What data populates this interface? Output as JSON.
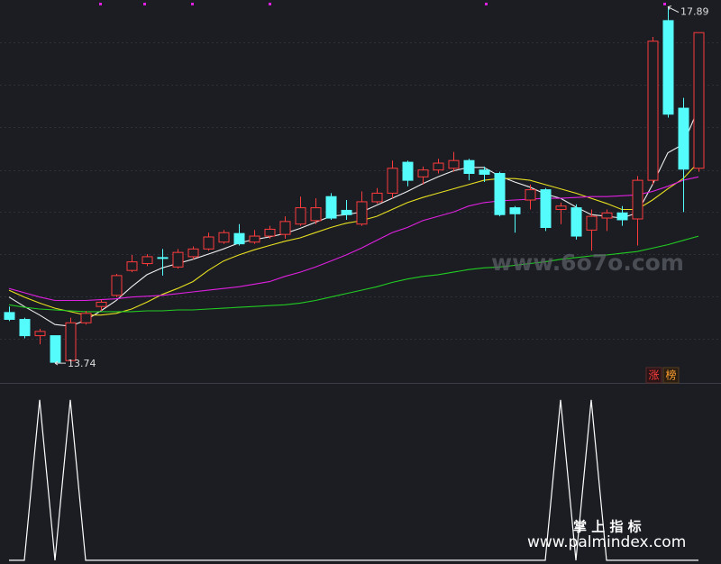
{
  "chart_data": [
    {
      "type": "candlestick",
      "open": [
        14.33,
        14.25,
        14.06,
        14.06,
        13.77,
        14.21,
        14.4,
        14.53,
        14.82,
        14.9,
        14.97,
        14.86,
        14.98,
        15.07,
        15.15,
        15.25,
        15.15,
        15.22,
        15.24,
        15.36,
        15.4,
        15.68,
        15.52,
        15.36,
        15.62,
        15.72,
        16.08,
        15.91,
        15.99,
        16.01,
        16.1,
        15.99,
        15.95,
        15.55,
        15.64,
        15.76,
        15.53,
        15.55,
        15.29,
        15.43,
        15.49,
        15.42,
        15.87,
        17.73,
        16.71,
        16.01
      ],
      "high": [
        14.4,
        14.27,
        14.14,
        14.06,
        14.27,
        14.35,
        14.48,
        14.78,
        15.0,
        15.01,
        15.07,
        15.07,
        15.1,
        15.26,
        15.29,
        15.36,
        15.29,
        15.34,
        15.45,
        15.68,
        15.66,
        15.72,
        15.64,
        15.74,
        15.78,
        16.1,
        16.1,
        16.03,
        16.12,
        16.2,
        16.12,
        16.03,
        15.97,
        15.57,
        15.82,
        15.78,
        15.61,
        15.59,
        15.53,
        15.53,
        15.57,
        15.92,
        17.54,
        17.89,
        16.83,
        17.59
      ],
      "low": [
        14.23,
        14.03,
        13.96,
        13.74,
        13.76,
        14.19,
        14.35,
        14.51,
        14.8,
        14.87,
        14.76,
        14.84,
        14.95,
        15.05,
        15.13,
        15.11,
        15.13,
        15.19,
        15.19,
        15.34,
        15.36,
        15.41,
        15.41,
        15.34,
        15.6,
        15.66,
        15.8,
        15.82,
        15.95,
        15.97,
        15.87,
        15.85,
        15.45,
        15.26,
        15.53,
        15.28,
        15.36,
        15.18,
        15.05,
        15.28,
        15.34,
        15.11,
        15.82,
        16.6,
        15.5,
        15.97
      ],
      "close": [
        14.25,
        14.06,
        14.11,
        13.75,
        14.21,
        14.32,
        14.45,
        14.76,
        14.92,
        14.98,
        14.96,
        15.03,
        15.07,
        15.21,
        15.26,
        15.13,
        15.22,
        15.3,
        15.39,
        15.55,
        15.55,
        15.43,
        15.47,
        15.62,
        15.72,
        16.01,
        15.87,
        15.99,
        16.07,
        16.1,
        15.95,
        15.94,
        15.47,
        15.48,
        15.76,
        15.32,
        15.57,
        15.22,
        15.45,
        15.49,
        15.41,
        15.87,
        17.49,
        16.64,
        16.0,
        17.59
      ],
      "up_color": "#ff3c3c",
      "down_color": "#54fcfc",
      "ylim": [
        13.51,
        17.97
      ],
      "yticks": [
        14.02,
        14.52,
        15.01,
        15.5,
        15.99,
        16.49,
        16.98,
        17.48
      ],
      "grid": true,
      "series": [
        {
          "color": "#eeeeee",
          "values": [
            14.51,
            14.4,
            14.3,
            14.19,
            14.17,
            14.24,
            14.35,
            14.47,
            14.63,
            14.77,
            14.85,
            14.9,
            14.95,
            15.01,
            15.07,
            15.14,
            15.18,
            15.21,
            15.25,
            15.31,
            15.38,
            15.45,
            15.47,
            15.5,
            15.58,
            15.66,
            15.74,
            15.83,
            15.91,
            15.98,
            16.02,
            16.02,
            15.92,
            15.85,
            15.79,
            15.71,
            15.66,
            15.56,
            15.47,
            15.45,
            15.43,
            15.49,
            15.82,
            16.19,
            16.29,
            16.71
          ]
        },
        {
          "color": "#e8e020",
          "values": [
            14.59,
            14.51,
            14.44,
            14.38,
            14.34,
            14.3,
            14.3,
            14.32,
            14.37,
            14.45,
            14.54,
            14.61,
            14.69,
            14.82,
            14.93,
            15.0,
            15.06,
            15.11,
            15.16,
            15.2,
            15.26,
            15.32,
            15.37,
            15.4,
            15.45,
            15.53,
            15.61,
            15.67,
            15.72,
            15.77,
            15.82,
            15.87,
            15.89,
            15.89,
            15.87,
            15.82,
            15.77,
            15.72,
            15.66,
            15.6,
            15.53,
            15.53,
            15.64,
            15.77,
            15.89,
            16.08
          ]
        },
        {
          "color": "#e020e0",
          "values": [
            14.61,
            14.56,
            14.51,
            14.47,
            14.47,
            14.47,
            14.48,
            14.49,
            14.51,
            14.52,
            14.53,
            14.55,
            14.57,
            14.59,
            14.61,
            14.63,
            14.66,
            14.69,
            14.75,
            14.8,
            14.86,
            14.93,
            15.0,
            15.08,
            15.17,
            15.26,
            15.32,
            15.4,
            15.45,
            15.5,
            15.57,
            15.61,
            15.63,
            15.64,
            15.65,
            15.66,
            15.66,
            15.67,
            15.68,
            15.68,
            15.69,
            15.7,
            15.74,
            15.8,
            15.87,
            15.91
          ]
        },
        {
          "color": "#22cc22",
          "values": [
            14.42,
            14.39,
            14.37,
            14.36,
            14.35,
            14.34,
            14.34,
            14.34,
            14.34,
            14.35,
            14.35,
            14.36,
            14.36,
            14.37,
            14.38,
            14.39,
            14.4,
            14.41,
            14.42,
            14.44,
            14.47,
            14.51,
            14.55,
            14.59,
            14.63,
            14.68,
            14.72,
            14.75,
            14.77,
            14.8,
            14.83,
            14.85,
            14.86,
            14.88,
            14.9,
            14.92,
            14.95,
            14.97,
            14.99,
            15.0,
            15.02,
            15.04,
            15.08,
            15.12,
            15.17,
            15.22
          ]
        }
      ]
    },
    {
      "type": "line",
      "color": "#ffffff",
      "values": [
        0,
        0,
        1,
        0,
        1,
        0,
        0,
        0,
        0,
        0,
        0,
        0,
        0,
        0,
        0,
        0,
        0,
        0,
        0,
        0,
        0,
        0,
        0,
        0,
        0,
        0,
        0,
        0,
        0,
        0,
        0,
        0,
        0,
        0,
        0,
        0,
        1,
        0,
        1,
        0,
        0,
        0,
        0,
        0,
        0,
        0
      ],
      "ylim": [
        -0.023,
        1.1
      ]
    }
  ],
  "badges": [
    "涨",
    "榜"
  ],
  "watermarks": [
    "www.6o7o.com",
    "掌 上 指 标",
    "www.palmindex.com"
  ]
}
